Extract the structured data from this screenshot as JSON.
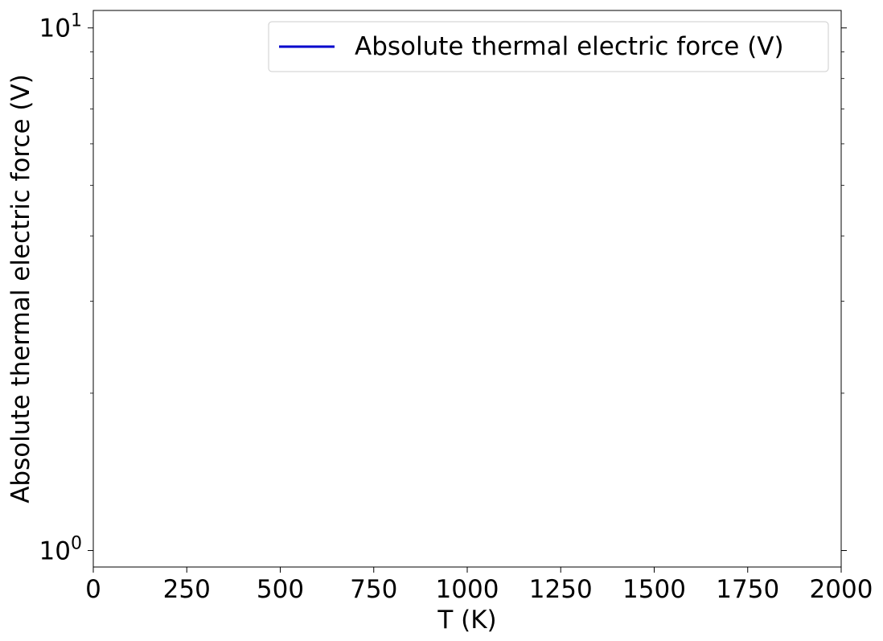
{
  "chart_data": {
    "type": "line",
    "title": "",
    "xlabel": "T (K)",
    "ylabel": "Absolute thermal electric force (V)",
    "xlim": [
      0,
      2000
    ],
    "ylim": [
      0.93,
      10.8
    ],
    "yscale": "log",
    "x_ticks": [
      0,
      250,
      500,
      750,
      1000,
      1250,
      1500,
      1750,
      2000
    ],
    "x_tick_labels": [
      "0",
      "250",
      "500",
      "750",
      "1000",
      "1250",
      "1500",
      "1750",
      "2000"
    ],
    "y_major_ticks": [
      {
        "value": 1,
        "base": "10",
        "exp": "0"
      },
      {
        "value": 10,
        "base": "10",
        "exp": "1"
      }
    ],
    "y_minor_ticks": [
      2,
      3,
      4,
      5,
      6,
      7,
      8,
      9
    ],
    "grid": false,
    "legend_position": "top-right",
    "series": [
      {
        "name": "Absolute thermal electric force (V)",
        "color": "#0000cc",
        "x": [],
        "y": []
      }
    ]
  }
}
